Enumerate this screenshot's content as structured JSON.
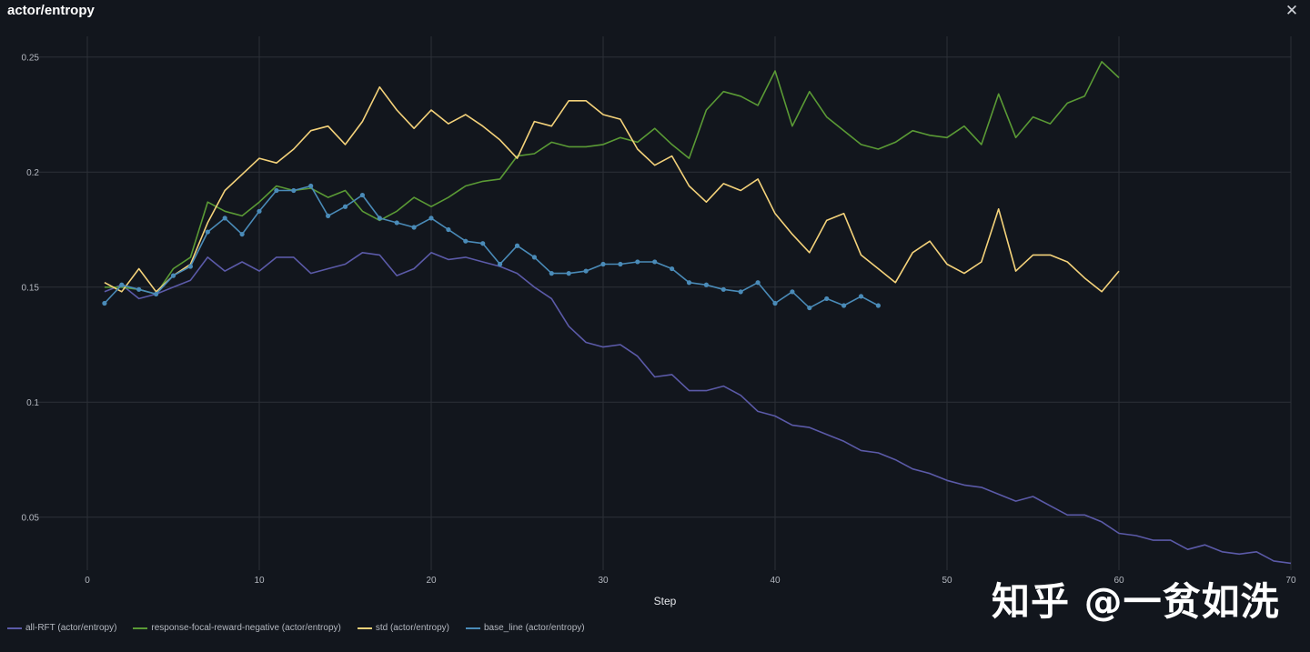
{
  "header": {
    "title": "actor/entropy",
    "close_icon": "close-icon"
  },
  "watermark": "知乎 @一贫如洗",
  "chart_data": {
    "type": "line",
    "xlabel": "Step",
    "ylabel": "",
    "xlim": [
      0,
      70
    ],
    "ylim": [
      0.027,
      0.259
    ],
    "x_ticks": [
      0,
      10,
      20,
      30,
      40,
      50,
      60,
      70
    ],
    "y_ticks": [
      0.05,
      0.1,
      0.15,
      0.2,
      0.25
    ],
    "y_tick_labels": [
      "0.05",
      "0.1",
      "0.15",
      "0.2",
      "0.25"
    ],
    "grid": true,
    "legend_position": "bottom-left",
    "series": [
      {
        "name": "all-RFT (actor/entropy)",
        "color": "#5b5aa8",
        "markers": false,
        "x": [
          1,
          2,
          3,
          4,
          5,
          6,
          7,
          8,
          9,
          10,
          11,
          12,
          13,
          14,
          15,
          16,
          17,
          18,
          19,
          20,
          21,
          22,
          23,
          24,
          25,
          26,
          27,
          28,
          29,
          30,
          31,
          32,
          33,
          34,
          35,
          36,
          37,
          38,
          39,
          40,
          41,
          42,
          43,
          44,
          45,
          46,
          47,
          48,
          49,
          50,
          51,
          52,
          53,
          54,
          55,
          56,
          57,
          58,
          59,
          60,
          61,
          62,
          63,
          64,
          65,
          66,
          67,
          68,
          69,
          70
        ],
        "values": [
          0.148,
          0.151,
          0.145,
          0.147,
          0.15,
          0.153,
          0.163,
          0.157,
          0.161,
          0.157,
          0.163,
          0.163,
          0.156,
          0.158,
          0.16,
          0.165,
          0.164,
          0.155,
          0.158,
          0.165,
          0.162,
          0.163,
          0.161,
          0.159,
          0.156,
          0.15,
          0.145,
          0.133,
          0.126,
          0.124,
          0.125,
          0.12,
          0.111,
          0.112,
          0.105,
          0.105,
          0.107,
          0.103,
          0.096,
          0.094,
          0.09,
          0.089,
          0.086,
          0.083,
          0.079,
          0.078,
          0.075,
          0.071,
          0.069,
          0.066,
          0.064,
          0.063,
          0.06,
          0.057,
          0.059,
          0.055,
          0.051,
          0.051,
          0.048,
          0.043,
          0.042,
          0.04,
          0.04,
          0.036,
          0.038,
          0.035,
          0.034,
          0.035,
          0.031,
          0.03
        ]
      },
      {
        "name": "response-focal-reward-negative (actor/entropy)",
        "color": "#5a9a35",
        "markers": false,
        "x": [
          1,
          2,
          3,
          4,
          5,
          6,
          7,
          8,
          9,
          10,
          11,
          12,
          13,
          14,
          15,
          16,
          17,
          18,
          19,
          20,
          21,
          22,
          23,
          24,
          25,
          26,
          27,
          28,
          29,
          30,
          31,
          32,
          33,
          34,
          35,
          36,
          37,
          38,
          39,
          40,
          41,
          42,
          43,
          44,
          45,
          46,
          47,
          48,
          49,
          50,
          51,
          52,
          53,
          54,
          55,
          56,
          57,
          58,
          59,
          60
        ],
        "values": [
          0.15,
          0.15,
          0.149,
          0.147,
          0.158,
          0.163,
          0.187,
          0.183,
          0.181,
          0.187,
          0.194,
          0.192,
          0.193,
          0.189,
          0.192,
          0.183,
          0.179,
          0.183,
          0.189,
          0.185,
          0.189,
          0.194,
          0.196,
          0.197,
          0.207,
          0.208,
          0.213,
          0.211,
          0.211,
          0.212,
          0.215,
          0.213,
          0.219,
          0.212,
          0.206,
          0.227,
          0.235,
          0.233,
          0.229,
          0.244,
          0.22,
          0.235,
          0.224,
          0.218,
          0.212,
          0.21,
          0.213,
          0.218,
          0.216,
          0.215,
          0.22,
          0.212,
          0.234,
          0.215,
          0.224,
          0.221,
          0.23,
          0.233,
          0.248,
          0.241
        ]
      },
      {
        "name": "std (actor/entropy)",
        "color": "#f4d27a",
        "markers": false,
        "x": [
          1,
          2,
          3,
          4,
          5,
          6,
          7,
          8,
          9,
          10,
          11,
          12,
          13,
          14,
          15,
          16,
          17,
          18,
          19,
          20,
          21,
          22,
          23,
          24,
          25,
          26,
          27,
          28,
          29,
          30,
          31,
          32,
          33,
          34,
          35,
          36,
          37,
          38,
          39,
          40,
          41,
          42,
          43,
          44,
          45,
          46,
          47,
          48,
          49,
          50,
          51,
          52,
          53,
          54,
          55,
          56,
          57,
          58,
          59,
          60
        ],
        "values": [
          0.152,
          0.148,
          0.158,
          0.148,
          0.155,
          0.16,
          0.178,
          0.192,
          0.199,
          0.206,
          0.204,
          0.21,
          0.218,
          0.22,
          0.212,
          0.222,
          0.237,
          0.227,
          0.219,
          0.227,
          0.221,
          0.225,
          0.22,
          0.214,
          0.206,
          0.222,
          0.22,
          0.231,
          0.231,
          0.225,
          0.223,
          0.21,
          0.203,
          0.207,
          0.194,
          0.187,
          0.195,
          0.192,
          0.197,
          0.182,
          0.173,
          0.165,
          0.179,
          0.182,
          0.164,
          0.158,
          0.152,
          0.165,
          0.17,
          0.16,
          0.156,
          0.161,
          0.184,
          0.157,
          0.164,
          0.164,
          0.161,
          0.154,
          0.148,
          0.157
        ]
      },
      {
        "name": "base_line (actor/entropy)",
        "color": "#4a8bb8",
        "markers": true,
        "x": [
          1,
          2,
          3,
          4,
          5,
          6,
          7,
          8,
          9,
          10,
          11,
          12,
          13,
          14,
          15,
          16,
          17,
          18,
          19,
          20,
          21,
          22,
          23,
          24,
          25,
          26,
          27,
          28,
          29,
          30,
          31,
          32,
          33,
          34,
          35,
          36,
          37,
          38,
          39,
          40,
          41,
          42,
          43,
          44,
          45,
          46
        ],
        "values": [
          0.143,
          0.151,
          0.149,
          0.147,
          0.155,
          0.159,
          0.174,
          0.18,
          0.173,
          0.183,
          0.192,
          0.192,
          0.194,
          0.181,
          0.185,
          0.19,
          0.18,
          0.178,
          0.176,
          0.18,
          0.175,
          0.17,
          0.169,
          0.16,
          0.168,
          0.163,
          0.156,
          0.156,
          0.157,
          0.16,
          0.16,
          0.161,
          0.161,
          0.158,
          0.152,
          0.151,
          0.149,
          0.148,
          0.152,
          0.143,
          0.148,
          0.141,
          0.145,
          0.142,
          0.146,
          0.142
        ]
      }
    ]
  }
}
